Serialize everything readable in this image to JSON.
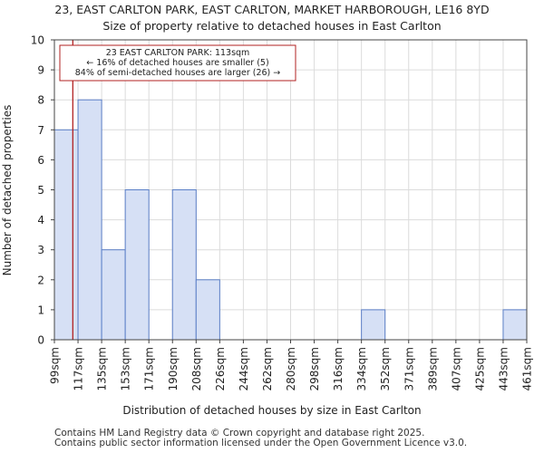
{
  "chart_data": {
    "type": "bar",
    "title": "23, EAST CARLTON PARK, EAST CARLTON, MARKET HARBOROUGH, LE16 8YD",
    "subtitle": "Size of property relative to detached houses in East Carlton",
    "xlabel": "Distribution of detached houses by size in East Carlton",
    "ylabel": "Number of detached properties",
    "ylim": [
      0,
      10
    ],
    "yticks": [
      "0",
      "1",
      "2",
      "3",
      "4",
      "5",
      "6",
      "7",
      "8",
      "9",
      "10"
    ],
    "bin_edges": [
      "99sqm",
      "117sqm",
      "135sqm",
      "153sqm",
      "171sqm",
      "190sqm",
      "208sqm",
      "226sqm",
      "244sqm",
      "262sqm",
      "280sqm",
      "298sqm",
      "316sqm",
      "334sqm",
      "352sqm",
      "371sqm",
      "389sqm",
      "407sqm",
      "425sqm",
      "443sqm",
      "461sqm"
    ],
    "values": [
      7,
      8,
      3,
      5,
      0,
      5,
      2,
      0,
      0,
      0,
      0,
      0,
      0,
      1,
      0,
      0,
      0,
      0,
      0,
      1
    ],
    "property_marker": {
      "size_sqm": 113,
      "bin_fraction": 0.78
    },
    "annotation": {
      "line1": "23 EAST CARLTON PARK: 113sqm",
      "line2": "← 16% of detached houses are smaller (5)",
      "line3": "84% of semi-detached houses are larger (26) →"
    },
    "bar_color": "#d6e0f5",
    "bar_edge": "#5b7fc7",
    "marker_color": "#b22222",
    "grid": true
  },
  "footer": {
    "line1": "Contains HM Land Registry data © Crown copyright and database right 2025.",
    "line2": "Contains public sector information licensed under the Open Government Licence v3.0."
  }
}
